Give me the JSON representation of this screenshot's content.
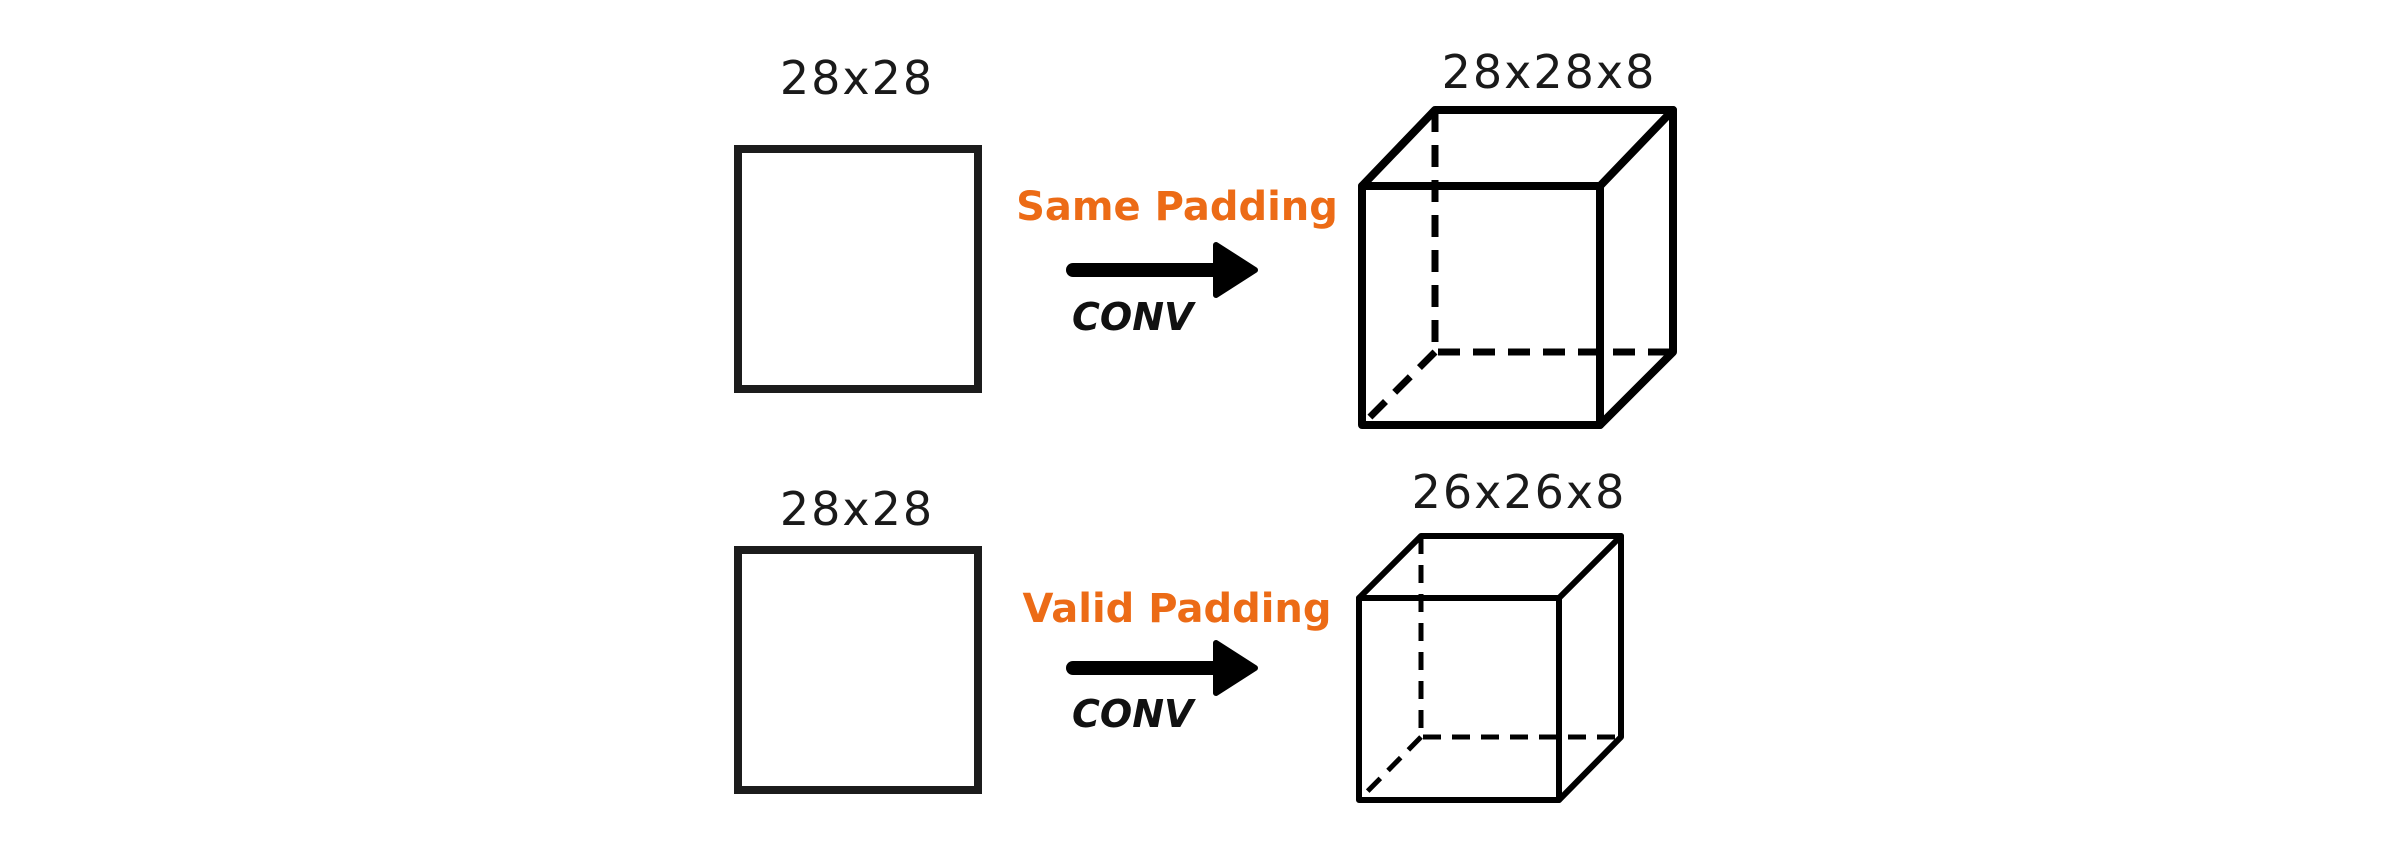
{
  "colors": {
    "accent": "#ec6b16",
    "stroke": "#000000",
    "background": "#ffffff"
  },
  "rows": [
    {
      "input_label": "28x28",
      "padding_label": "Same Padding",
      "op_label": "CONV",
      "output_label": "28x28x8"
    },
    {
      "input_label": "28x28",
      "padding_label": "Valid Padding",
      "op_label": "CONV",
      "output_label": "26x26x8"
    }
  ]
}
